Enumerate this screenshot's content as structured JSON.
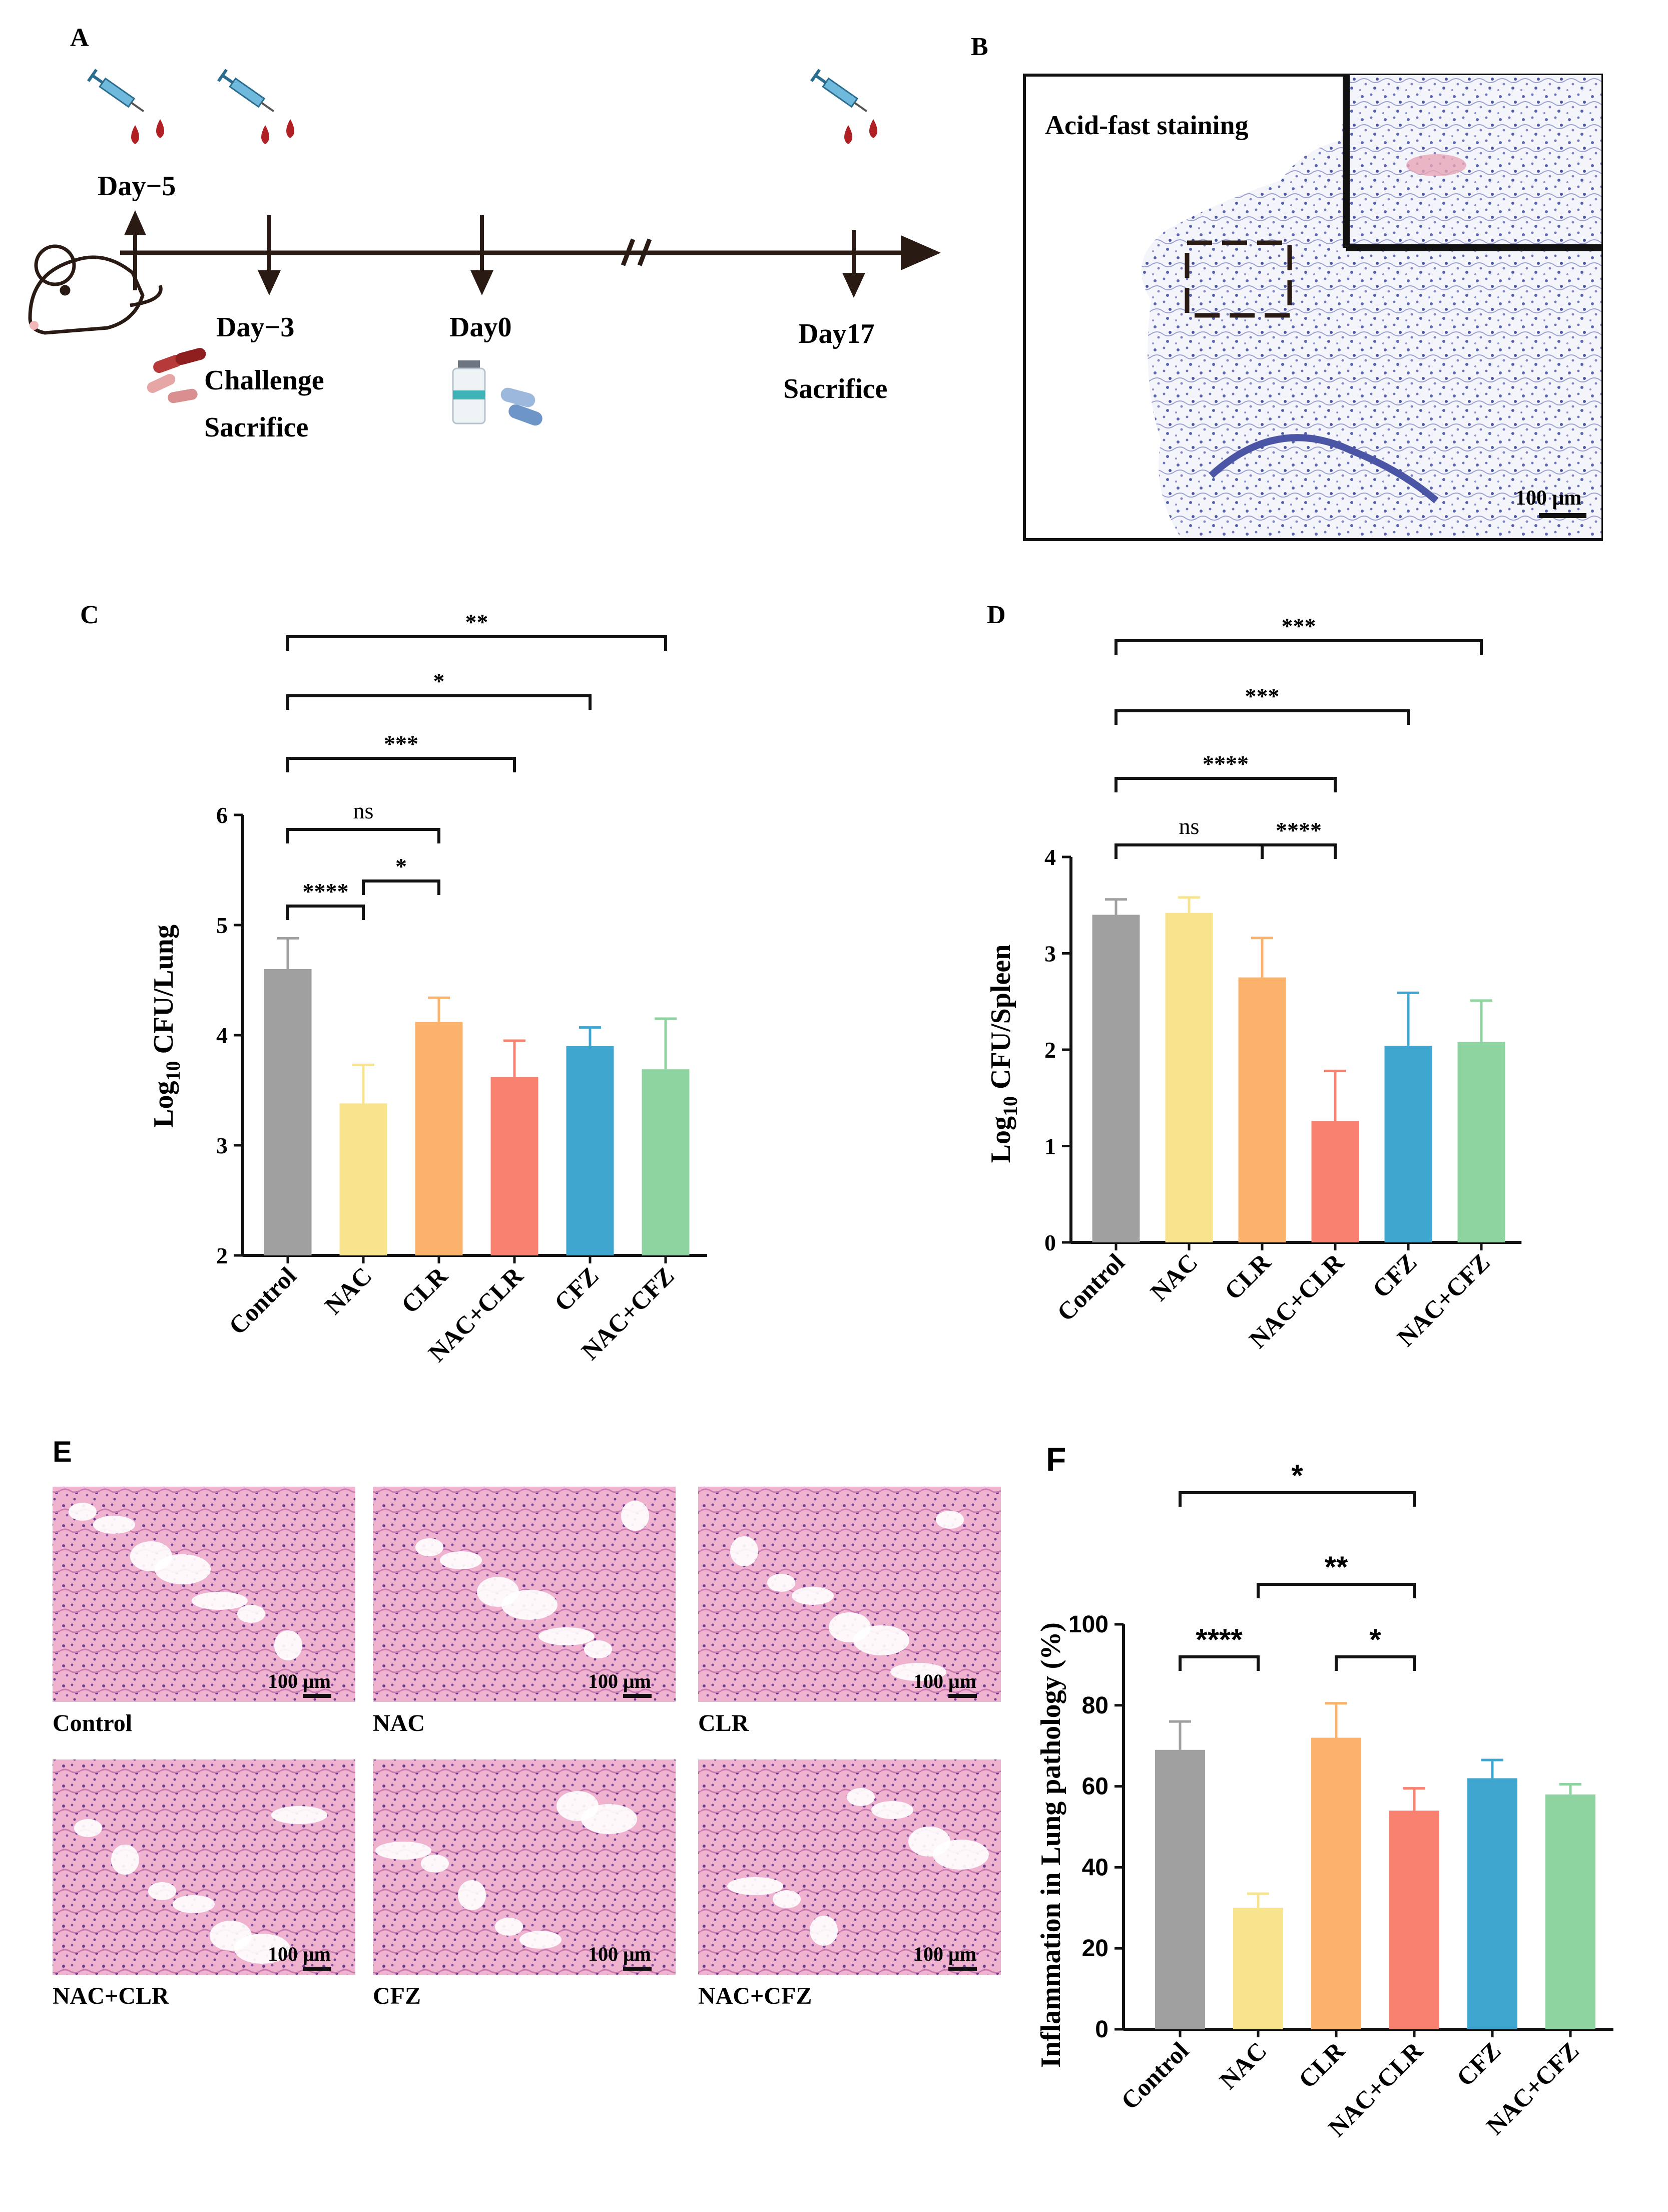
{
  "panels": {
    "A": {
      "label": "A",
      "timeline": {
        "day_minus5": "Day−5",
        "day_minus3": "Day−3",
        "challenge": "Challenge",
        "sacrifice_early": "Sacrifice",
        "day0": "Day0",
        "day17": "Day17",
        "sacrifice_final": "Sacrifice"
      }
    },
    "B": {
      "label": "B",
      "stain_label": "Acid-fast staining",
      "scale_bar": "100 μm"
    },
    "E": {
      "label": "E",
      "scale_bar": "100 μm",
      "images": [
        "Control",
        "NAC",
        "CLR",
        "NAC+CLR",
        "CFZ",
        "NAC+CFZ"
      ]
    }
  },
  "chart_data": [
    {
      "id": "C",
      "panel_label": "C",
      "type": "bar",
      "categories": [
        "Control",
        "NAC",
        "CLR",
        "NAC+CLR",
        "CFZ",
        "NAC+CFZ"
      ],
      "values": [
        4.6,
        3.38,
        4.12,
        3.62,
        3.9,
        3.69
      ],
      "errors": [
        0.28,
        0.35,
        0.22,
        0.33,
        0.17,
        0.46
      ],
      "colors": [
        "#a0a0a0",
        "#f7e48c",
        "#fbb36b",
        "#f8816f",
        "#3ea6cf",
        "#8ed4a1"
      ],
      "ylabel_main": "Log",
      "ylabel_sub": "10",
      "ylabel_rest": " CFU/Lung",
      "ylim": [
        2,
        6
      ],
      "yticks": [
        2,
        3,
        4,
        5,
        6
      ],
      "significance": [
        {
          "from": 0,
          "to": 1,
          "label": "****"
        },
        {
          "from": 1,
          "to": 2,
          "label": "*"
        },
        {
          "from": 0,
          "to": 2,
          "label": "ns"
        },
        {
          "from": 0,
          "to": 3,
          "label": "***"
        },
        {
          "from": 0,
          "to": 4,
          "label": "*"
        },
        {
          "from": 0,
          "to": 5,
          "label": "**"
        }
      ]
    },
    {
      "id": "D",
      "panel_label": "D",
      "type": "bar",
      "categories": [
        "Control",
        "NAC",
        "CLR",
        "NAC+CLR",
        "CFZ",
        "NAC+CFZ"
      ],
      "values": [
        3.4,
        3.42,
        2.75,
        1.26,
        2.04,
        2.08
      ],
      "errors": [
        0.16,
        0.16,
        0.41,
        0.52,
        0.55,
        0.43
      ],
      "colors": [
        "#a0a0a0",
        "#f7e48c",
        "#fbb36b",
        "#f8816f",
        "#3ea6cf",
        "#8ed4a1"
      ],
      "ylabel_main": "Log",
      "ylabel_sub": "10",
      "ylabel_rest": " CFU/Spleen",
      "ylim": [
        0,
        4
      ],
      "yticks": [
        0,
        1,
        2,
        3,
        4
      ],
      "significance": [
        {
          "from": 0,
          "to": 2,
          "label": "ns"
        },
        {
          "from": 2,
          "to": 3,
          "label": "****"
        },
        {
          "from": 0,
          "to": 3,
          "label": "****"
        },
        {
          "from": 0,
          "to": 4,
          "label": "***"
        },
        {
          "from": 0,
          "to": 5,
          "label": "***"
        }
      ]
    },
    {
      "id": "F",
      "panel_label": "F",
      "type": "bar",
      "categories": [
        "Control",
        "NAC",
        "CLR",
        "NAC+CLR",
        "CFZ",
        "NAC+CFZ"
      ],
      "values": [
        69,
        30,
        72,
        54,
        62,
        58
      ],
      "errors": [
        7,
        3.5,
        8.5,
        5.5,
        4.5,
        2.5
      ],
      "colors": [
        "#a0a0a0",
        "#f7e48c",
        "#fbb36b",
        "#f8816f",
        "#3ea6cf",
        "#8ed4a1"
      ],
      "ylabel_main": "Inflammation in Lung pathology (%)",
      "ylabel_sub": "",
      "ylabel_rest": "",
      "ylim": [
        0,
        100
      ],
      "yticks": [
        0,
        20,
        40,
        60,
        80,
        100
      ],
      "significance": [
        {
          "from": 0,
          "to": 1,
          "label": "****"
        },
        {
          "from": 2,
          "to": 3,
          "label": "*"
        },
        {
          "from": 1,
          "to": 3,
          "label": "**"
        },
        {
          "from": 0,
          "to": 3,
          "label": "*"
        }
      ]
    }
  ]
}
